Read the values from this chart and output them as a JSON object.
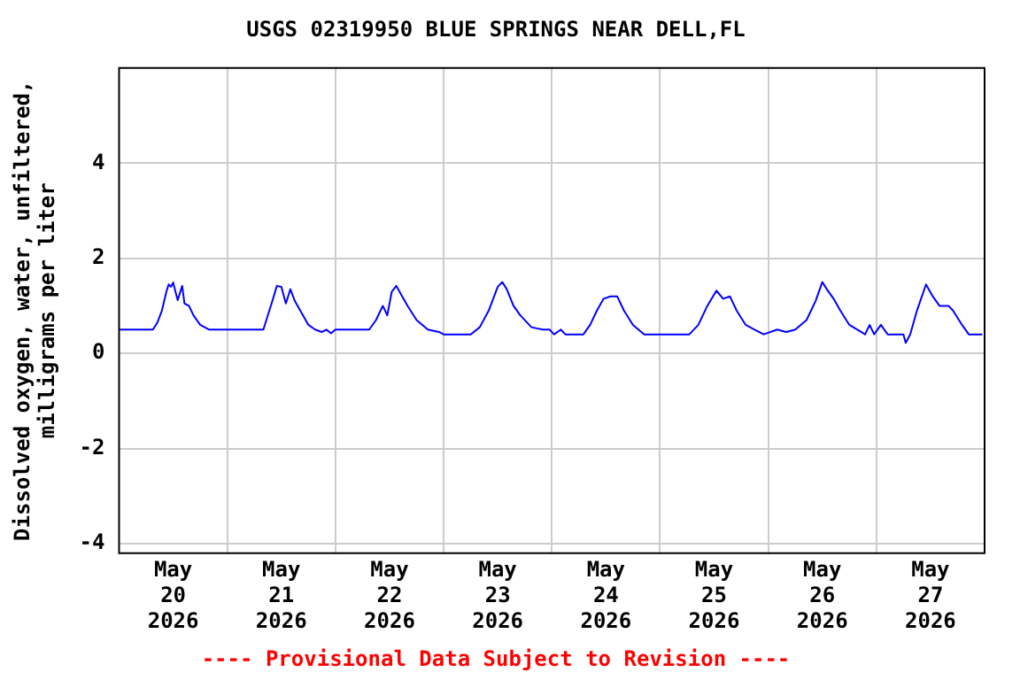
{
  "chart_data": {
    "type": "line",
    "title": "USGS 02319950 BLUE SPRINGS NEAR DELL,FL",
    "ylabel": "Dissolved oxygen, water, unfiltered, milligrams per liter",
    "annotations": [
      "---- Provisional Data Subject to Revision ----"
    ],
    "xlim": [
      "2026-05-20",
      "2026-05-28"
    ],
    "xticks": [
      {
        "value": "2026-05-20T12:00",
        "label": "May 20 2026"
      },
      {
        "value": "2026-05-21",
        "label": null
      },
      {
        "value": "2026-05-21T12:00",
        "label": "May 21 2026"
      },
      {
        "value": "2026-05-22",
        "label": null
      },
      {
        "value": "2026-05-22T12:00",
        "label": "May 22 2026"
      },
      {
        "value": "2026-05-23",
        "label": null
      },
      {
        "value": "2026-05-23T12:00",
        "label": "May 23 2026"
      },
      {
        "value": "2026-05-24",
        "label": null
      },
      {
        "value": "2026-05-24T12:00",
        "label": "May 24 2026"
      },
      {
        "value": "2026-05-25",
        "label": null
      },
      {
        "value": "2026-05-25T12:00",
        "label": "May 25 2026"
      },
      {
        "value": "2026-05-26",
        "label": null
      },
      {
        "value": "2026-05-26T12:00",
        "label": "May 26 2026"
      },
      {
        "value": "2026-05-27",
        "label": null
      },
      {
        "value": "2026-05-27T12:00",
        "label": "May 27 2026"
      }
    ],
    "ylim": [
      -4.2,
      6
    ],
    "yticks": [
      -4,
      -2,
      0,
      2,
      4
    ],
    "grid": true,
    "marker": "none",
    "line_style": "solid",
    "x": [
      "2026-05-20T00:00",
      "2026-05-20T07:30",
      "2026-05-20T08:30",
      "2026-05-20T09:30",
      "2026-05-20T10:30",
      "2026-05-20T11:00",
      "2026-05-20T11:30",
      "2026-05-20T12:00",
      "2026-05-20T12:30",
      "2026-05-20T13:00",
      "2026-05-20T14:00",
      "2026-05-20T14:30",
      "2026-05-20T15:30",
      "2026-05-20T16:30",
      "2026-05-20T18:00",
      "2026-05-20T20:00",
      "2026-05-21T08:00",
      "2026-05-21T08:30",
      "2026-05-21T10:00",
      "2026-05-21T11:00",
      "2026-05-21T12:00",
      "2026-05-21T13:00",
      "2026-05-21T14:00",
      "2026-05-21T15:00",
      "2026-05-21T16:30",
      "2026-05-21T18:00",
      "2026-05-21T19:30",
      "2026-05-21T21:00",
      "2026-05-21T22:00",
      "2026-05-21T23:00",
      "2026-05-22T00:00",
      "2026-05-22T07:30",
      "2026-05-22T09:00",
      "2026-05-22T10:30",
      "2026-05-22T11:30",
      "2026-05-22T12:30",
      "2026-05-22T13:30",
      "2026-05-22T14:30",
      "2026-05-22T16:00",
      "2026-05-22T18:00",
      "2026-05-22T20:30",
      "2026-05-22T23:00",
      "2026-05-23T00:00",
      "2026-05-23T06:00",
      "2026-05-23T08:00",
      "2026-05-23T10:00",
      "2026-05-23T12:00",
      "2026-05-23T13:00",
      "2026-05-23T14:00",
      "2026-05-23T15:30",
      "2026-05-23T17:00",
      "2026-05-23T19:30",
      "2026-05-23T22:00",
      "2026-05-23T23:30",
      "2026-05-24T00:30",
      "2026-05-24T02:00",
      "2026-05-24T03:00",
      "2026-05-24T07:00",
      "2026-05-24T08:30",
      "2026-05-24T10:00",
      "2026-05-24T11:30",
      "2026-05-24T13:00",
      "2026-05-24T14:30",
      "2026-05-24T16:00",
      "2026-05-24T18:00",
      "2026-05-24T20:30",
      "2026-05-25T00:00",
      "2026-05-25T06:30",
      "2026-05-25T08:30",
      "2026-05-25T10:30",
      "2026-05-25T12:30",
      "2026-05-25T14:00",
      "2026-05-25T15:30",
      "2026-05-25T17:00",
      "2026-05-25T19:00",
      "2026-05-25T21:00",
      "2026-05-25T23:00",
      "2026-05-26T02:00",
      "2026-05-26T04:00",
      "2026-05-26T06:00",
      "2026-05-26T08:30",
      "2026-05-26T10:30",
      "2026-05-26T12:00",
      "2026-05-26T13:00",
      "2026-05-26T14:30",
      "2026-05-26T16:00",
      "2026-05-26T18:00",
      "2026-05-26T21:30",
      "2026-05-26T22:30",
      "2026-05-26T23:30",
      "2026-05-27T01:00",
      "2026-05-27T02:30",
      "2026-05-27T06:00",
      "2026-05-27T06:30",
      "2026-05-27T07:30",
      "2026-05-27T09:00",
      "2026-05-27T11:00",
      "2026-05-27T12:30",
      "2026-05-27T14:00",
      "2026-05-27T16:00",
      "2026-05-27T17:00",
      "2026-05-27T19:00",
      "2026-05-27T20:30",
      "2026-05-27T23:30"
    ],
    "series": [
      {
        "color": "#0000ff",
        "values": [
          0.5,
          0.5,
          0.65,
          0.9,
          1.3,
          1.45,
          1.4,
          1.49,
          1.3,
          1.12,
          1.42,
          1.05,
          1.0,
          0.8,
          0.6,
          0.5,
          0.5,
          0.65,
          1.1,
          1.42,
          1.4,
          1.05,
          1.35,
          1.1,
          0.85,
          0.6,
          0.5,
          0.45,
          0.5,
          0.42,
          0.5,
          0.5,
          0.7,
          1.0,
          0.8,
          1.3,
          1.42,
          1.25,
          1.0,
          0.7,
          0.5,
          0.45,
          0.4,
          0.4,
          0.55,
          0.9,
          1.4,
          1.5,
          1.35,
          1.0,
          0.8,
          0.55,
          0.5,
          0.5,
          0.4,
          0.5,
          0.4,
          0.4,
          0.6,
          0.9,
          1.15,
          1.2,
          1.2,
          0.9,
          0.6,
          0.4,
          0.4,
          0.4,
          0.6,
          1.0,
          1.32,
          1.15,
          1.2,
          0.9,
          0.6,
          0.5,
          0.4,
          0.5,
          0.45,
          0.5,
          0.7,
          1.1,
          1.5,
          1.35,
          1.15,
          0.9,
          0.6,
          0.4,
          0.6,
          0.4,
          0.6,
          0.4,
          0.4,
          0.22,
          0.4,
          0.9,
          1.45,
          1.2,
          1.0,
          1.0,
          0.9,
          0.6,
          0.4,
          0.4
        ]
      }
    ]
  }
}
